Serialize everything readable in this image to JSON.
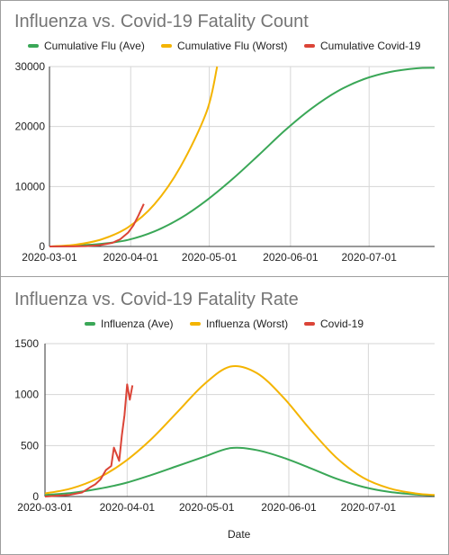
{
  "colors": {
    "flu_ave": "#3aa757",
    "flu_worst": "#f4b400",
    "covid": "#db4437",
    "grid": "#d6d6d6",
    "axis": "#333333",
    "text": "#222222",
    "title": "#757575"
  },
  "chart_data": [
    {
      "type": "line",
      "title": "Influenza vs. Covid-19 Fatality Count",
      "xlabel": "",
      "ylabel": "",
      "xlim": [
        "2020-03-01",
        "2020-07-26"
      ],
      "ylim": [
        0,
        30000
      ],
      "yticks": [
        "0",
        "10000",
        "20000",
        "30000"
      ],
      "xticks": [
        "2020-03-01",
        "2020-04-01",
        "2020-05-01",
        "2020-06-01",
        "2020-07-01"
      ],
      "grid": true,
      "legend_position": "top",
      "series": [
        {
          "name": "Cumulative Flu (Ave)",
          "color_key": "flu_ave",
          "x": [
            "2020-03-01",
            "2020-03-11",
            "2020-03-21",
            "2020-03-31",
            "2020-04-10",
            "2020-04-20",
            "2020-04-30",
            "2020-05-10",
            "2020-05-20",
            "2020-05-30",
            "2020-06-09",
            "2020-06-19",
            "2020-06-29",
            "2020-07-09",
            "2020-07-19",
            "2020-07-26"
          ],
          "y": [
            0,
            150,
            450,
            1100,
            2500,
            4700,
            7700,
            11300,
            15300,
            19400,
            23000,
            25900,
            27900,
            29100,
            29700,
            29800
          ]
        },
        {
          "name": "Cumulative Flu (Worst)",
          "color_key": "flu_worst",
          "x": [
            "2020-03-01",
            "2020-03-11",
            "2020-03-21",
            "2020-03-31",
            "2020-04-10",
            "2020-04-20",
            "2020-04-30",
            "2020-05-04"
          ],
          "y": [
            0,
            300,
            1200,
            3200,
            7000,
            13300,
            22500,
            30000
          ]
        },
        {
          "name": "Cumulative Covid-19",
          "color_key": "covid",
          "x": [
            "2020-03-01",
            "2020-03-10",
            "2020-03-15",
            "2020-03-20",
            "2020-03-25",
            "2020-03-28",
            "2020-03-31",
            "2020-04-02",
            "2020-04-04",
            "2020-04-06"
          ],
          "y": [
            0,
            20,
            60,
            200,
            600,
            1200,
            2300,
            3500,
            5200,
            7100
          ]
        }
      ]
    },
    {
      "type": "line",
      "title": "Influenza vs. Covid-19 Fatality Rate",
      "xlabel": "Date",
      "ylabel": "",
      "xlim": [
        "2020-03-01",
        "2020-07-26"
      ],
      "ylim": [
        0,
        1500
      ],
      "yticks": [
        "0",
        "500",
        "1000",
        "1500"
      ],
      "xticks": [
        "2020-03-01",
        "2020-04-01",
        "2020-05-01",
        "2020-06-01",
        "2020-07-01"
      ],
      "grid": true,
      "legend_position": "top",
      "series": [
        {
          "name": "Influenza (Ave)",
          "color_key": "flu_ave",
          "x": [
            "2020-03-01",
            "2020-03-11",
            "2020-03-21",
            "2020-03-31",
            "2020-04-10",
            "2020-04-20",
            "2020-04-30",
            "2020-05-10",
            "2020-05-20",
            "2020-05-30",
            "2020-06-09",
            "2020-06-19",
            "2020-06-29",
            "2020-07-09",
            "2020-07-19",
            "2020-07-26"
          ],
          "y": [
            15,
            35,
            75,
            130,
            210,
            300,
            390,
            475,
            455,
            380,
            280,
            175,
            95,
            45,
            20,
            12
          ]
        },
        {
          "name": "Influenza (Worst)",
          "color_key": "flu_worst",
          "x": [
            "2020-03-01",
            "2020-03-11",
            "2020-03-21",
            "2020-03-31",
            "2020-04-10",
            "2020-04-20",
            "2020-04-30",
            "2020-05-10",
            "2020-05-20",
            "2020-05-30",
            "2020-06-09",
            "2020-06-19",
            "2020-06-29",
            "2020-07-09",
            "2020-07-19",
            "2020-07-26"
          ],
          "y": [
            30,
            80,
            180,
            340,
            560,
            830,
            1100,
            1275,
            1210,
            970,
            660,
            380,
            185,
            80,
            30,
            15
          ]
        },
        {
          "name": "Covid-19",
          "color_key": "covid",
          "x": [
            "2020-03-01",
            "2020-03-10",
            "2020-03-15",
            "2020-03-18",
            "2020-03-20",
            "2020-03-22",
            "2020-03-24",
            "2020-03-26",
            "2020-03-27",
            "2020-03-29",
            "2020-03-30",
            "2020-03-31",
            "2020-04-01",
            "2020-04-02",
            "2020-04-03"
          ],
          "y": [
            0,
            15,
            40,
            90,
            120,
            170,
            260,
            300,
            480,
            350,
            600,
            800,
            1100,
            950,
            1090
          ]
        }
      ]
    }
  ]
}
